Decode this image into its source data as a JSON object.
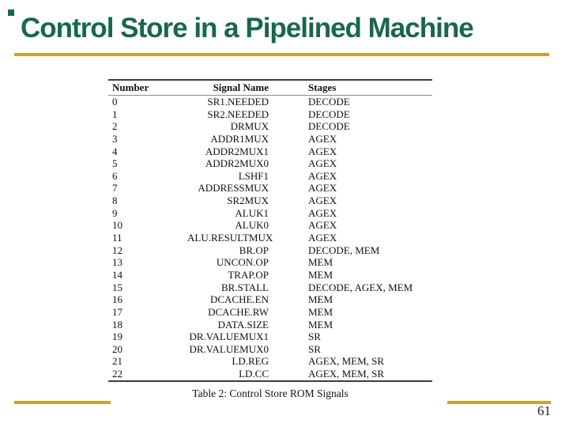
{
  "slide": {
    "title": "Control Store in a Pipelined Machine",
    "page_number": "61",
    "colors": {
      "title_green": "#17684B",
      "accent_gold": "#C8A42F"
    }
  },
  "table": {
    "caption": "Table 2: Control Store ROM Signals",
    "columns": [
      "Number",
      "Signal Name",
      "Stages"
    ],
    "rows": [
      [
        "0",
        "SR1.NEEDED",
        "DECODE"
      ],
      [
        "1",
        "SR2.NEEDED",
        "DECODE"
      ],
      [
        "2",
        "DRMUX",
        "DECODE"
      ],
      [
        "3",
        "ADDR1MUX",
        "AGEX"
      ],
      [
        "4",
        "ADDR2MUX1",
        "AGEX"
      ],
      [
        "5",
        "ADDR2MUX0",
        "AGEX"
      ],
      [
        "6",
        "LSHF1",
        "AGEX"
      ],
      [
        "7",
        "ADDRESSMUX",
        "AGEX"
      ],
      [
        "8",
        "SR2MUX",
        "AGEX"
      ],
      [
        "9",
        "ALUK1",
        "AGEX"
      ],
      [
        "10",
        "ALUK0",
        "AGEX"
      ],
      [
        "11",
        "ALU.RESULTMUX",
        "AGEX"
      ],
      [
        "12",
        "BR.OP",
        "DECODE, MEM"
      ],
      [
        "13",
        "UNCON.OP",
        "MEM"
      ],
      [
        "14",
        "TRAP.OP",
        "MEM"
      ],
      [
        "15",
        "BR.STALL",
        "DECODE, AGEX, MEM"
      ],
      [
        "16",
        "DCACHE.EN",
        "MEM"
      ],
      [
        "17",
        "DCACHE.RW",
        "MEM"
      ],
      [
        "18",
        "DATA.SIZE",
        "MEM"
      ],
      [
        "19",
        "DR.VALUEMUX1",
        "SR"
      ],
      [
        "20",
        "DR.VALUEMUX0",
        "SR"
      ],
      [
        "21",
        "LD.REG",
        "AGEX, MEM, SR"
      ],
      [
        "22",
        "LD.CC",
        "AGEX, MEM, SR"
      ]
    ]
  }
}
